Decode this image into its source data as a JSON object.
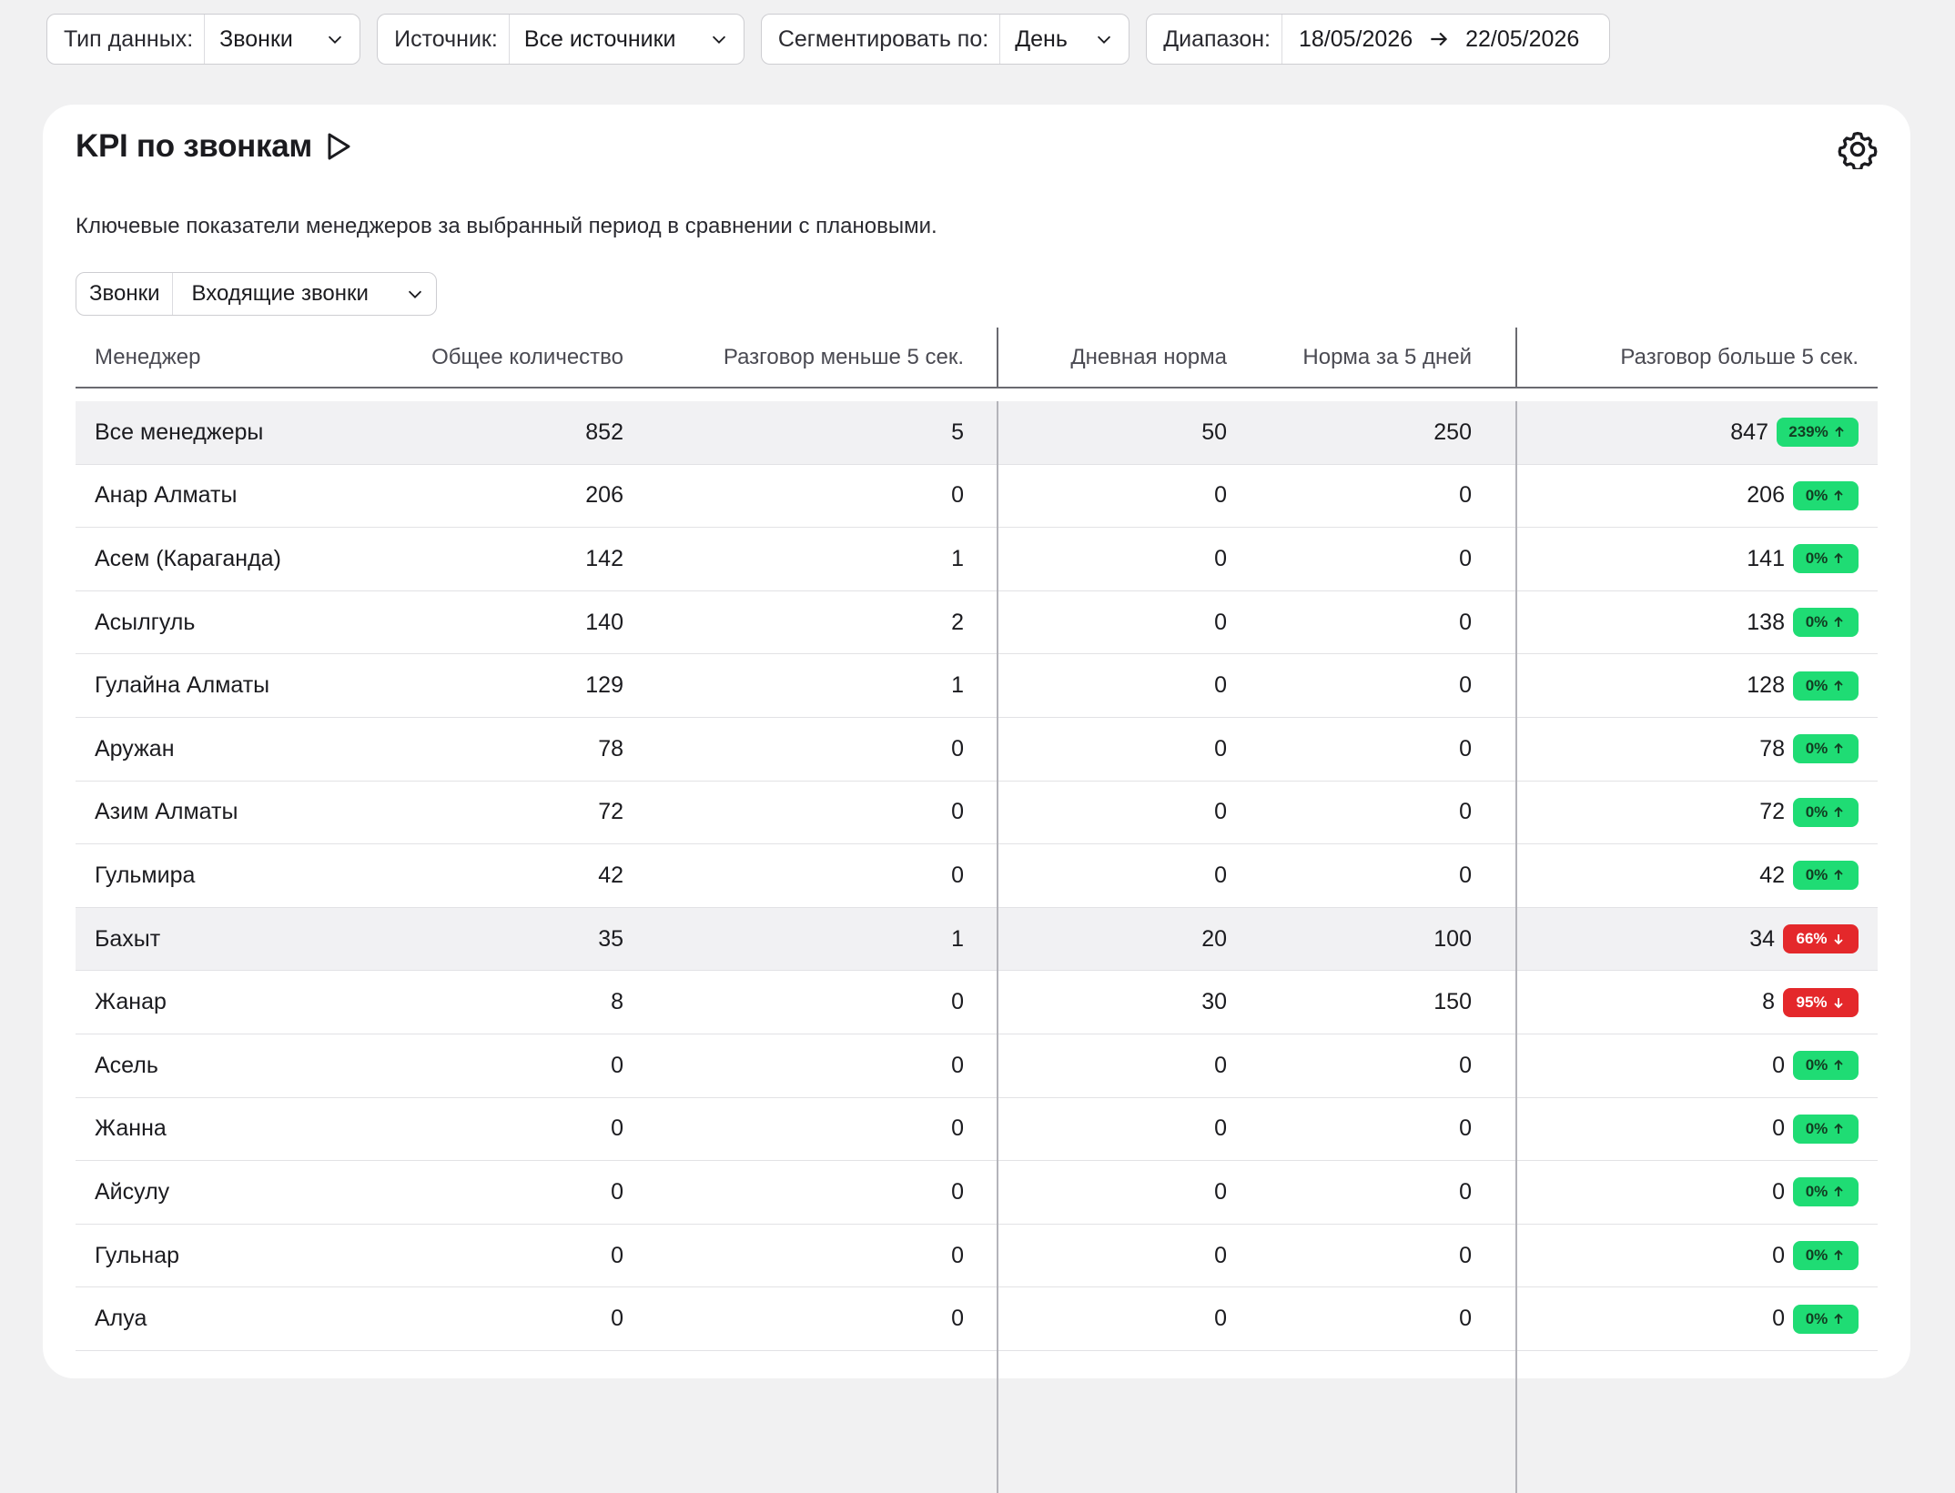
{
  "filters": {
    "type": {
      "label": "Тип данных:",
      "value": "Звонки"
    },
    "source": {
      "label": "Источник:",
      "value": "Все источники"
    },
    "segment": {
      "label": "Сегментировать по:",
      "value": "День"
    },
    "range": {
      "label": "Диапазон:",
      "from": "18/05/2026",
      "to": "22/05/2026"
    }
  },
  "card": {
    "title": "KPI по звонкам",
    "description": "Ключевые показатели менеджеров за выбранный период в сравнении с плановыми.",
    "subfilter": {
      "label": "Звонки",
      "value": "Входящие звонки"
    }
  },
  "table": {
    "headers": [
      "Менеджер",
      "Общее количество",
      "Разговор меньше 5 сек.",
      "Дневная норма",
      "Норма за 5 дней",
      "Разговор больше 5 сек."
    ],
    "rows": [
      {
        "name": "Все менеджеры",
        "total": "852",
        "short": "5",
        "daily": "50",
        "norm5": "250",
        "long": "847",
        "pct": "239%",
        "dir": "up",
        "highlight": true
      },
      {
        "name": "Анар Алматы",
        "total": "206",
        "short": "0",
        "daily": "0",
        "norm5": "0",
        "long": "206",
        "pct": "0%",
        "dir": "up"
      },
      {
        "name": "Асем (Караганда)",
        "total": "142",
        "short": "1",
        "daily": "0",
        "norm5": "0",
        "long": "141",
        "pct": "0%",
        "dir": "up"
      },
      {
        "name": "Асылгуль",
        "total": "140",
        "short": "2",
        "daily": "0",
        "norm5": "0",
        "long": "138",
        "pct": "0%",
        "dir": "up"
      },
      {
        "name": "Гулайна Алматы",
        "total": "129",
        "short": "1",
        "daily": "0",
        "norm5": "0",
        "long": "128",
        "pct": "0%",
        "dir": "up"
      },
      {
        "name": "Аружан",
        "total": "78",
        "short": "0",
        "daily": "0",
        "norm5": "0",
        "long": "78",
        "pct": "0%",
        "dir": "up"
      },
      {
        "name": "Азим Алматы",
        "total": "72",
        "short": "0",
        "daily": "0",
        "norm5": "0",
        "long": "72",
        "pct": "0%",
        "dir": "up"
      },
      {
        "name": "Гульмира",
        "total": "42",
        "short": "0",
        "daily": "0",
        "norm5": "0",
        "long": "42",
        "pct": "0%",
        "dir": "up"
      },
      {
        "name": "Бахыт",
        "total": "35",
        "short": "1",
        "daily": "20",
        "norm5": "100",
        "long": "34",
        "pct": "66%",
        "dir": "down",
        "highlight": true
      },
      {
        "name": "Жанар",
        "total": "8",
        "short": "0",
        "daily": "30",
        "norm5": "150",
        "long": "8",
        "pct": "95%",
        "dir": "down"
      },
      {
        "name": "Асель",
        "total": "0",
        "short": "0",
        "daily": "0",
        "norm5": "0",
        "long": "0",
        "pct": "0%",
        "dir": "up"
      },
      {
        "name": "Жанна",
        "total": "0",
        "short": "0",
        "daily": "0",
        "norm5": "0",
        "long": "0",
        "pct": "0%",
        "dir": "up"
      },
      {
        "name": "Айсулу",
        "total": "0",
        "short": "0",
        "daily": "0",
        "norm5": "0",
        "long": "0",
        "pct": "0%",
        "dir": "up"
      },
      {
        "name": "Гульнар",
        "total": "0",
        "short": "0",
        "daily": "0",
        "norm5": "0",
        "long": "0",
        "pct": "0%",
        "dir": "up"
      },
      {
        "name": "Алуа",
        "total": "0",
        "short": "0",
        "daily": "0",
        "norm5": "0",
        "long": "0",
        "pct": "0%",
        "dir": "up"
      }
    ]
  },
  "colors": {
    "up": "#1fdc74",
    "down": "#e4282b",
    "background": "#f1f1f2"
  },
  "icons": {
    "dropdown": "chevron-down-icon",
    "range": "arrow-right-icon",
    "title": "play-icon",
    "settings": "gear-icon",
    "trend_up": "arrow-up-icon",
    "trend_down": "arrow-down-icon"
  }
}
